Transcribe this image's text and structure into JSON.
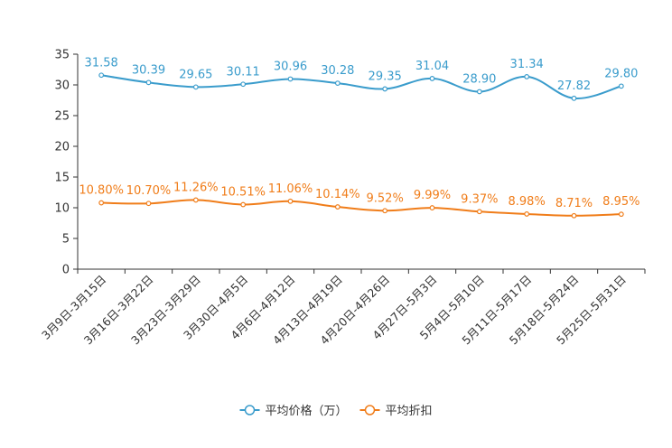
{
  "chart_data": {
    "type": "line",
    "title": "",
    "xlabel": "",
    "ylabel": "",
    "ylim": [
      0,
      35
    ],
    "yticks": [
      0,
      5,
      10,
      15,
      20,
      25,
      30,
      35
    ],
    "grid": false,
    "legend_position": "bottom",
    "categories": [
      "3月9日-3月15日",
      "3月16日-3月22日",
      "3月23日-3月29日",
      "3月30日-4月5日",
      "4月6日-4月12日",
      "4月13日-4月19日",
      "4月20日-4月26日",
      "4月27日-5月3日",
      "5月4日-5月10日",
      "5月11日-5月17日",
      "5月18日-5月24日",
      "5月25日-5月31日"
    ],
    "series": [
      {
        "name": "平均价格（万）",
        "color": "#3a9ccc",
        "values": [
          31.58,
          30.39,
          29.65,
          30.11,
          30.96,
          30.28,
          29.35,
          31.04,
          28.9,
          31.34,
          27.82,
          29.8
        ],
        "labels": [
          "31.58",
          "30.39",
          "29.65",
          "30.11",
          "30.96",
          "30.28",
          "29.35",
          "31.04",
          "28.90",
          "31.34",
          "27.82",
          "29.80"
        ]
      },
      {
        "name": "平均折扣",
        "color": "#f07d1a",
        "values": [
          10.8,
          10.7,
          11.26,
          10.51,
          11.06,
          10.14,
          9.52,
          9.99,
          9.37,
          8.98,
          8.71,
          8.95
        ],
        "labels": [
          "10.80%",
          "10.70%",
          "11.26%",
          "10.51%",
          "11.06%",
          "10.14%",
          "9.52%",
          "9.99%",
          "9.37%",
          "8.98%",
          "8.71%",
          "8.95%"
        ]
      }
    ]
  }
}
